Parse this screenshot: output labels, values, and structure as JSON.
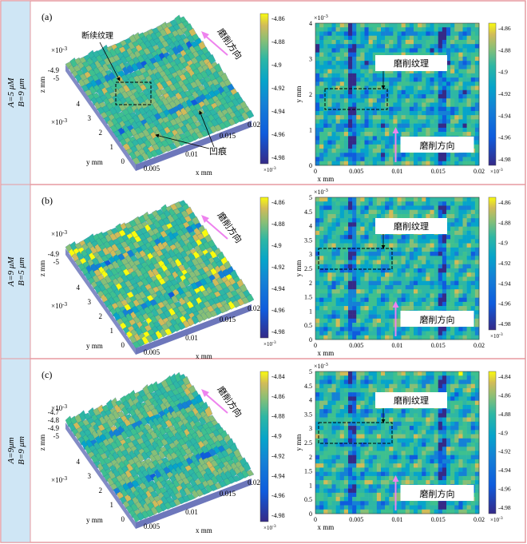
{
  "rows": [
    {
      "panel": "(a)",
      "param_a": "A=5 μM",
      "param_b": "B=9 μm",
      "surface3d": {
        "exp": "×10-3",
        "z_label": "z mm",
        "x_label": "x mm",
        "y_label": "y mm",
        "y_exp": "×10-3",
        "z_ticks": [
          "-4.9",
          "-5"
        ],
        "y_ticks": [
          "0",
          "1",
          "2",
          "3",
          "4"
        ],
        "x_ticks": [
          "0.005",
          "0.01",
          "0.015",
          "0.02"
        ],
        "annot_texture": "断续纹理",
        "annot_pit": "凹痕",
        "grind_dir": "磨削方向"
      },
      "map2d": {
        "exp": "×10-3",
        "y_label": "y mm",
        "x_label": "x mm",
        "y_ticks": [
          "0",
          "1",
          "2",
          "3",
          "4"
        ],
        "x_ticks": [
          "0",
          "0.005",
          "0.01",
          "0.015",
          "0.02"
        ],
        "annot_texture": "磨削纹理",
        "grind_dir": "磨削方向"
      },
      "colorbar": {
        "ticks": [
          "-4.86",
          "-4.88",
          "-4.9",
          "-4.92",
          "-4.94",
          "-4.96",
          "-4.98"
        ],
        "exp": "×10-3"
      }
    },
    {
      "panel": "(b)",
      "param_a": "A=9 μM",
      "param_b": "B=5 μm",
      "surface3d": {
        "exp": "×10-3",
        "z_label": "z mm",
        "x_label": "x mm",
        "y_label": "y mm",
        "y_exp": "×10-3",
        "z_ticks": [
          "-4.9",
          "-5"
        ],
        "y_ticks": [
          "0",
          "1",
          "2",
          "3",
          "4"
        ],
        "x_ticks": [
          "0.005",
          "0.01",
          "0.015",
          "0.02"
        ],
        "grind_dir": "磨削方向"
      },
      "map2d": {
        "exp": "×10-3",
        "y_label": "y mm",
        "x_label": "x mm",
        "y_ticks": [
          "0",
          "0.5",
          "1",
          "1.5",
          "2",
          "2.5",
          "3",
          "3.5",
          "4",
          "4.5",
          "5"
        ],
        "x_ticks": [
          "0",
          "0.005",
          "0.01",
          "0.015",
          "0.02"
        ],
        "annot_texture": "磨削纹理",
        "grind_dir": "磨削方向"
      },
      "colorbar": {
        "ticks": [
          "-4.86",
          "-4.88",
          "-4.9",
          "-4.92",
          "-4.94",
          "-4.96",
          "-4.98"
        ],
        "exp": "×10-3"
      }
    },
    {
      "panel": "(c)",
      "param_a": "A=9μm",
      "param_b": "B=9 μm",
      "surface3d": {
        "exp": "×10-3",
        "z_label": "z mm",
        "x_label": "x mm",
        "y_label": "y mm",
        "y_exp": "×10-3",
        "z_ticks": [
          "-4.7",
          "-4.8",
          "-4.9",
          "-5"
        ],
        "y_ticks": [
          "0",
          "1",
          "2",
          "3",
          "4"
        ],
        "x_ticks": [
          "0.005",
          "0.01",
          "0.015",
          "0.02"
        ],
        "grind_dir": "磨削方向"
      },
      "map2d": {
        "exp": "×10-3",
        "y_label": "y mm",
        "x_label": "x mm",
        "y_ticks": [
          "0",
          "0.5",
          "1",
          "1.5",
          "2",
          "2.5",
          "3",
          "3.5",
          "4",
          "4.5",
          "5"
        ],
        "x_ticks": [
          "0",
          "0.005",
          "0.01",
          "0.015",
          "0.02"
        ],
        "annot_texture": "磨削纹理",
        "grind_dir": "磨削方向"
      },
      "colorbar": {
        "ticks": [
          "-4.84",
          "-4.86",
          "-4.88",
          "-4.9",
          "-4.92",
          "-4.94",
          "-4.96",
          "-4.98"
        ],
        "exp": "×10-3"
      }
    }
  ],
  "colors": {
    "row_label_bg": "#cfe6f5",
    "frame_border": "#e79aa0",
    "arrow_color": "#ee82ee",
    "parula_low": "#352a87",
    "parula_mid": "#21b1a5",
    "parula_high": "#f9fb0e"
  }
}
